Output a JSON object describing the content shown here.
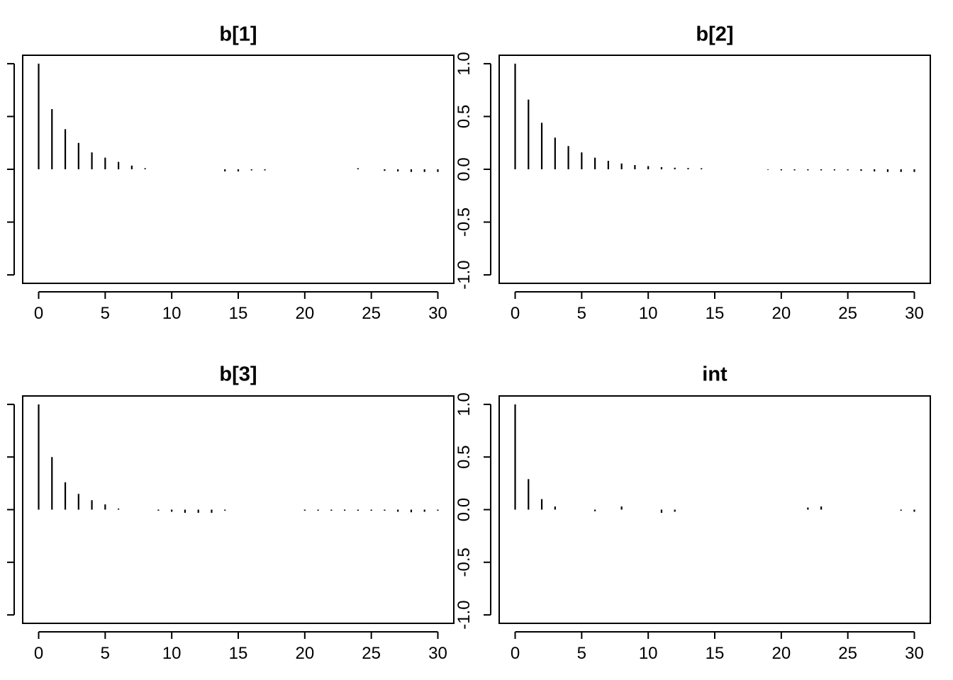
{
  "chart_data": [
    {
      "type": "bar",
      "title": "b[1]",
      "xlabel": "",
      "ylabel": "",
      "xlim": [
        0,
        30
      ],
      "ylim": [
        -1,
        1
      ],
      "xticks": [
        "0",
        "5",
        "10",
        "15",
        "20",
        "25",
        "30"
      ],
      "yticks": [],
      "x": [
        0,
        1,
        2,
        3,
        4,
        5,
        6,
        7,
        8,
        9,
        10,
        11,
        12,
        13,
        14,
        15,
        16,
        17,
        18,
        19,
        20,
        21,
        22,
        23,
        24,
        25,
        26,
        27,
        28,
        29,
        30
      ],
      "values": [
        1.0,
        0.57,
        0.38,
        0.25,
        0.16,
        0.11,
        0.07,
        0.035,
        0.01,
        0.0,
        0.0,
        0.0,
        0.0,
        0.0,
        -0.02,
        -0.02,
        -0.01,
        -0.01,
        0.0,
        0.0,
        0.0,
        0.0,
        0.0,
        0.0,
        0.01,
        0.0,
        -0.015,
        -0.02,
        -0.025,
        -0.025,
        -0.025
      ]
    },
    {
      "type": "bar",
      "title": "b[2]",
      "xlabel": "",
      "ylabel": "",
      "xlim": [
        0,
        30
      ],
      "ylim": [
        -1,
        1
      ],
      "xticks": [
        "0",
        "5",
        "10",
        "15",
        "20",
        "25",
        "30"
      ],
      "yticks": [
        "-1.0",
        "-0.5",
        "0.0",
        "0.5",
        "1.0"
      ],
      "x": [
        0,
        1,
        2,
        3,
        4,
        5,
        6,
        7,
        8,
        9,
        10,
        11,
        12,
        13,
        14,
        15,
        16,
        17,
        18,
        19,
        20,
        21,
        22,
        23,
        24,
        25,
        26,
        27,
        28,
        29,
        30
      ],
      "values": [
        1.0,
        0.66,
        0.44,
        0.3,
        0.22,
        0.16,
        0.11,
        0.08,
        0.055,
        0.04,
        0.03,
        0.02,
        0.015,
        0.012,
        0.01,
        0.0,
        0.0,
        0.0,
        0.0,
        -0.005,
        -0.01,
        -0.01,
        -0.01,
        -0.01,
        -0.01,
        -0.01,
        -0.015,
        -0.02,
        -0.025,
        -0.025,
        -0.025
      ]
    },
    {
      "type": "bar",
      "title": "b[3]",
      "xlabel": "",
      "ylabel": "",
      "xlim": [
        0,
        30
      ],
      "ylim": [
        -1,
        1
      ],
      "xticks": [
        "0",
        "5",
        "10",
        "15",
        "20",
        "25",
        "30"
      ],
      "yticks": [],
      "x": [
        0,
        1,
        2,
        3,
        4,
        5,
        6,
        7,
        8,
        9,
        10,
        11,
        12,
        13,
        14,
        15,
        16,
        17,
        18,
        19,
        20,
        21,
        22,
        23,
        24,
        25,
        26,
        27,
        28,
        29,
        30
      ],
      "values": [
        1.0,
        0.5,
        0.26,
        0.15,
        0.09,
        0.05,
        0.01,
        0.0,
        0.0,
        -0.01,
        -0.02,
        -0.03,
        -0.03,
        -0.03,
        -0.01,
        0.0,
        0.0,
        0.0,
        0.0,
        0.0,
        -0.01,
        -0.01,
        -0.01,
        -0.01,
        -0.01,
        -0.01,
        -0.01,
        -0.02,
        -0.025,
        -0.02,
        -0.01
      ]
    },
    {
      "type": "bar",
      "title": "int",
      "xlabel": "",
      "ylabel": "",
      "xlim": [
        0,
        30
      ],
      "ylim": [
        -1,
        1
      ],
      "xticks": [
        "0",
        "5",
        "10",
        "15",
        "20",
        "25",
        "30"
      ],
      "yticks": [
        "-1.0",
        "-0.5",
        "0.0",
        "0.5",
        "1.0"
      ],
      "x": [
        0,
        1,
        2,
        3,
        4,
        5,
        6,
        7,
        8,
        9,
        10,
        11,
        12,
        13,
        14,
        15,
        16,
        17,
        18,
        19,
        20,
        21,
        22,
        23,
        24,
        25,
        26,
        27,
        28,
        29,
        30
      ],
      "values": [
        1.0,
        0.29,
        0.1,
        0.03,
        0.0,
        0.0,
        -0.015,
        0.0,
        0.03,
        0.0,
        0.0,
        -0.03,
        -0.02,
        0.0,
        0.0,
        0.0,
        0.0,
        0.0,
        0.0,
        0.0,
        0.0,
        0.0,
        0.02,
        0.03,
        0.0,
        0.0,
        0.0,
        0.0,
        0.0,
        -0.01,
        -0.02
      ]
    }
  ]
}
